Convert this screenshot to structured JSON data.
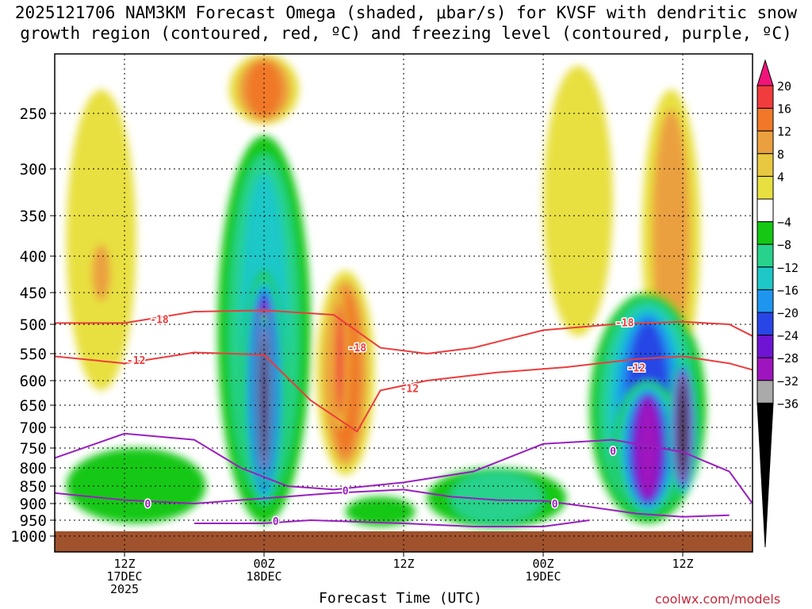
{
  "chart_data": {
    "type": "heatmap",
    "title_line1": "2025121706 NAM3KM Forecast Omega (shaded, μbar/s) for KVSF with dendritic snow",
    "title_line2": "growth region (contoured, red, ºC) and freezing level (contoured, purple, ºC)",
    "xlabel": "Forecast Time (UTC)",
    "credit": "coolwx.com/models",
    "ylabel_ticks": [
      {
        "p": 250,
        "label": "250"
      },
      {
        "p": 300,
        "label": "300"
      },
      {
        "p": 350,
        "label": "350"
      },
      {
        "p": 400,
        "label": "400"
      },
      {
        "p": 450,
        "label": "450"
      },
      {
        "p": 500,
        "label": "500"
      },
      {
        "p": 550,
        "label": "550"
      },
      {
        "p": 600,
        "label": "600"
      },
      {
        "p": 650,
        "label": "650"
      },
      {
        "p": 700,
        "label": "700"
      },
      {
        "p": 750,
        "label": "750"
      },
      {
        "p": 800,
        "label": "800"
      },
      {
        "p": 850,
        "label": "850"
      },
      {
        "p": 900,
        "label": "900"
      },
      {
        "p": 950,
        "label": "950"
      },
      {
        "p": 1000,
        "label": "1000"
      }
    ],
    "ylim_hpa": [
      200,
      1020
    ],
    "xlim_hours": [
      0,
      60
    ],
    "x_ticks": [
      {
        "h": 6,
        "lines": [
          "12Z",
          "17DEC",
          "2025"
        ]
      },
      {
        "h": 18,
        "lines": [
          "00Z",
          "18DEC"
        ]
      },
      {
        "h": 30,
        "lines": [
          "12Z"
        ]
      },
      {
        "h": 42,
        "lines": [
          "00Z",
          "19DEC"
        ]
      },
      {
        "h": 54,
        "lines": [
          "12Z"
        ]
      }
    ],
    "colorbar": {
      "labels": [
        "20",
        "16",
        "12",
        "8",
        "4",
        "−4",
        "−8",
        "−12",
        "−16",
        "−20",
        "−24",
        "−28",
        "−32",
        "−36"
      ],
      "colors": [
        "#f0147a",
        "#f03c3c",
        "#f07828",
        "#eba040",
        "#e8c840",
        "#e8e040",
        "#ffffff",
        "#14c814",
        "#28d28c",
        "#1ec8c8",
        "#1e96f0",
        "#2846e6",
        "#6e14d2",
        "#9e14be",
        "#aaaaaa",
        "#000000"
      ]
    },
    "omega_regions": [
      {
        "name": "left-upper-rise",
        "value": 6,
        "h_center": 4,
        "h_halfwidth": 3,
        "p_top": 230,
        "p_bottom": 620
      },
      {
        "name": "left-core-rise",
        "value": 10,
        "h_center": 4,
        "h_halfwidth": 1.2,
        "p_top": 380,
        "p_bottom": 470
      },
      {
        "name": "left-low-sink",
        "value": -6,
        "h_center": 7,
        "h_halfwidth": 6,
        "p_top": 750,
        "p_bottom": 960
      },
      {
        "name": "main-sink",
        "value": -14,
        "h_center": 18,
        "h_halfwidth": 4,
        "p_top": 270,
        "p_bottom": 960
      },
      {
        "name": "main-sink-core",
        "value": -30,
        "h_center": 18,
        "h_halfwidth": 2,
        "p_top": 420,
        "p_bottom": 920
      },
      {
        "name": "main-sink-max",
        "value": -38,
        "h_center": 18,
        "h_halfwidth": 0.8,
        "p_top": 480,
        "p_bottom": 850
      },
      {
        "name": "top-rise",
        "value": 14,
        "h_center": 18,
        "h_halfwidth": 3,
        "p_top": 200,
        "p_bottom": 260
      },
      {
        "name": "mid-rise",
        "value": 12,
        "h_center": 25,
        "h_halfwidth": 2.5,
        "p_top": 420,
        "p_bottom": 820
      },
      {
        "name": "mid-rise-core",
        "value": 18,
        "h_center": 24.5,
        "h_halfwidth": 0.7,
        "p_top": 450,
        "p_bottom": 700
      },
      {
        "name": "mid-low-sink",
        "value": -6,
        "h_center": 28,
        "h_halfwidth": 3,
        "p_top": 880,
        "p_bottom": 970
      },
      {
        "name": "right-upper-rise",
        "value": 6,
        "h_center": 45,
        "h_halfwidth": 3,
        "p_top": 210,
        "p_bottom": 520
      },
      {
        "name": "right-upper-rise-2",
        "value": 8,
        "h_center": 53,
        "h_halfwidth": 2.5,
        "p_top": 230,
        "p_bottom": 600
      },
      {
        "name": "right-sink",
        "value": -20,
        "h_center": 51,
        "h_halfwidth": 5,
        "p_top": 450,
        "p_bottom": 960
      },
      {
        "name": "right-sink-core",
        "value": -30,
        "h_center": 51,
        "h_halfwidth": 3,
        "p_top": 600,
        "p_bottom": 940
      },
      {
        "name": "right-sink-max",
        "value": -38,
        "h_center": 54,
        "h_halfwidth": 1.3,
        "p_top": 560,
        "p_bottom": 880
      },
      {
        "name": "low-sink-east",
        "value": -8,
        "h_center": 38,
        "h_halfwidth": 6,
        "p_top": 800,
        "p_bottom": 975
      }
    ],
    "dgz_contours": [
      {
        "label": "-18",
        "points": [
          [
            0,
            498
          ],
          [
            6,
            498
          ],
          [
            12,
            480
          ],
          [
            18,
            478
          ],
          [
            24,
            485
          ],
          [
            28,
            540
          ],
          [
            32,
            550
          ],
          [
            36,
            540
          ],
          [
            42,
            510
          ],
          [
            48,
            500
          ],
          [
            54,
            496
          ],
          [
            58,
            500
          ],
          [
            60,
            520
          ]
        ]
      },
      {
        "label": "-12",
        "points": [
          [
            0,
            555
          ],
          [
            6,
            568
          ],
          [
            12,
            548
          ],
          [
            18,
            552
          ],
          [
            22,
            640
          ],
          [
            26,
            710
          ],
          [
            28,
            620
          ],
          [
            32,
            600
          ],
          [
            38,
            585
          ],
          [
            44,
            575
          ],
          [
            50,
            560
          ],
          [
            54,
            555
          ],
          [
            58,
            568
          ],
          [
            60,
            580
          ]
        ]
      }
    ],
    "freezing_contours": [
      {
        "label": "0",
        "points": [
          [
            0,
            775
          ],
          [
            6,
            715
          ],
          [
            12,
            730
          ],
          [
            16,
            800
          ],
          [
            20,
            850
          ],
          [
            24,
            860
          ],
          [
            30,
            840
          ],
          [
            36,
            810
          ],
          [
            42,
            740
          ],
          [
            48,
            730
          ],
          [
            54,
            760
          ],
          [
            58,
            810
          ],
          [
            60,
            900
          ]
        ]
      },
      {
        "label": "0",
        "points": [
          [
            0,
            870
          ],
          [
            6,
            890
          ],
          [
            12,
            900
          ],
          [
            16,
            890
          ],
          [
            20,
            880
          ],
          [
            24,
            870
          ],
          [
            30,
            860
          ],
          [
            34,
            880
          ],
          [
            38,
            890
          ],
          [
            42,
            892
          ],
          [
            46,
            910
          ],
          [
            50,
            930
          ],
          [
            54,
            940
          ],
          [
            58,
            935
          ]
        ]
      },
      {
        "label": "0",
        "points": [
          [
            12,
            960
          ],
          [
            18,
            960
          ],
          [
            22,
            950
          ],
          [
            30,
            960
          ],
          [
            36,
            970
          ],
          [
            42,
            970
          ],
          [
            46,
            950
          ]
        ]
      }
    ],
    "contour_labels": [
      {
        "text": "-18",
        "h": 9,
        "p": 492,
        "type": "dgz"
      },
      {
        "text": "-12",
        "h": 7,
        "p": 562,
        "type": "dgz"
      },
      {
        "text": "-18",
        "h": 26,
        "p": 539,
        "type": "dgz"
      },
      {
        "text": "-12",
        "h": 30.5,
        "p": 615,
        "type": "dgz"
      },
      {
        "text": "-18",
        "h": 49,
        "p": 497,
        "type": "dgz"
      },
      {
        "text": "-12",
        "h": 50,
        "p": 576,
        "type": "dgz"
      },
      {
        "text": "0",
        "h": 8,
        "p": 900,
        "type": "frz"
      },
      {
        "text": "0",
        "h": 19,
        "p": 953,
        "type": "frz"
      },
      {
        "text": "0",
        "h": 25,
        "p": 863,
        "type": "frz"
      },
      {
        "text": "0",
        "h": 43,
        "p": 900,
        "type": "frz"
      },
      {
        "text": "0",
        "h": 48,
        "p": 757,
        "type": "frz"
      }
    ],
    "terrain_top_hpa": 985,
    "terrain_color": "#a0522d"
  }
}
